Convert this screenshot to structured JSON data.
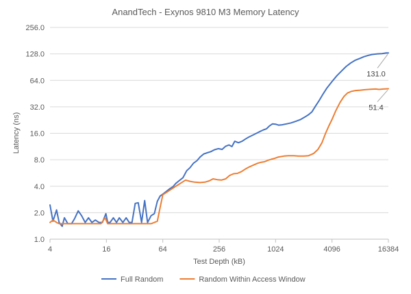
{
  "chart_data": {
    "type": "line",
    "title": "AnandTech - Exynos 9810 M3 Memory Latency",
    "xlabel": "Test Depth (kB)",
    "ylabel": "Latency (ns)",
    "x_scale": "log2",
    "y_scale": "log2",
    "xlim": [
      4,
      16384
    ],
    "ylim": [
      1,
      256
    ],
    "x_ticks": [
      4,
      16,
      64,
      256,
      1024,
      4096,
      16384
    ],
    "x_tick_labels": [
      "4",
      "16",
      "64",
      "256",
      "1024",
      "4096",
      "16384"
    ],
    "y_ticks": [
      1,
      2,
      4,
      8,
      16,
      32,
      64,
      128,
      256
    ],
    "y_tick_labels": [
      "1.0",
      "2.0",
      "4.0",
      "8.0",
      "16.0",
      "32.0",
      "64.0",
      "128.0",
      "256.0"
    ],
    "grid": "horizontal",
    "legend_position": "bottom",
    "series": [
      {
        "name": "Full Random",
        "color": "#4472C4",
        "points": [
          [
            4.0,
            2.45
          ],
          [
            4.3,
            1.6
          ],
          [
            4.7,
            2.15
          ],
          [
            5.0,
            1.55
          ],
          [
            5.4,
            1.4
          ],
          [
            5.7,
            1.75
          ],
          [
            6.2,
            1.5
          ],
          [
            6.8,
            1.5
          ],
          [
            7.3,
            1.7
          ],
          [
            8.0,
            2.1
          ],
          [
            8.7,
            1.85
          ],
          [
            9.5,
            1.55
          ],
          [
            10.3,
            1.75
          ],
          [
            11.2,
            1.55
          ],
          [
            12.2,
            1.65
          ],
          [
            13.3,
            1.55
          ],
          [
            14.5,
            1.55
          ],
          [
            15.8,
            1.95
          ],
          [
            16.5,
            1.55
          ],
          [
            17.5,
            1.55
          ],
          [
            19.0,
            1.75
          ],
          [
            20.5,
            1.55
          ],
          [
            22.0,
            1.75
          ],
          [
            24.0,
            1.55
          ],
          [
            26.0,
            1.75
          ],
          [
            28.0,
            1.55
          ],
          [
            30.0,
            1.55
          ],
          [
            32.5,
            2.55
          ],
          [
            35.0,
            2.6
          ],
          [
            38.0,
            1.55
          ],
          [
            41.0,
            2.75
          ],
          [
            44.0,
            1.55
          ],
          [
            48.0,
            1.85
          ],
          [
            52.0,
            1.95
          ],
          [
            56.0,
            2.7
          ],
          [
            60.0,
            3.1
          ],
          [
            64.0,
            3.25
          ],
          [
            70.0,
            3.5
          ],
          [
            76.0,
            3.75
          ],
          [
            82.0,
            3.95
          ],
          [
            88.0,
            4.3
          ],
          [
            95.0,
            4.6
          ],
          [
            105.0,
            5.0
          ],
          [
            115.0,
            6.0
          ],
          [
            125.0,
            6.5
          ],
          [
            136.0,
            7.3
          ],
          [
            148.0,
            7.8
          ],
          [
            160.0,
            8.6
          ],
          [
            175.0,
            9.3
          ],
          [
            190.0,
            9.6
          ],
          [
            208.0,
            9.9
          ],
          [
            228.0,
            10.4
          ],
          [
            250.0,
            10.7
          ],
          [
            275.0,
            10.5
          ],
          [
            300.0,
            11.4
          ],
          [
            325.0,
            11.8
          ],
          [
            350.0,
            11.3
          ],
          [
            375.0,
            13.0
          ],
          [
            410.0,
            12.5
          ],
          [
            450.0,
            13.0
          ],
          [
            490.0,
            13.8
          ],
          [
            530.0,
            14.5
          ],
          [
            580.0,
            15.2
          ],
          [
            640.0,
            16.0
          ],
          [
            700.0,
            16.8
          ],
          [
            760.0,
            17.5
          ],
          [
            820.0,
            18.0
          ],
          [
            880.0,
            19.4
          ],
          [
            950.0,
            20.5
          ],
          [
            1024.0,
            20.3
          ],
          [
            1100.0,
            19.8
          ],
          [
            1200.0,
            20.0
          ],
          [
            1350.0,
            20.5
          ],
          [
            1500.0,
            21.0
          ],
          [
            1700.0,
            22.0
          ],
          [
            1900.0,
            23.0
          ],
          [
            2100.0,
            24.5
          ],
          [
            2300.0,
            26.0
          ],
          [
            2500.0,
            28.0
          ],
          [
            2750.0,
            33.0
          ],
          [
            3000.0,
            38.0
          ],
          [
            3300.0,
            45.0
          ],
          [
            3600.0,
            52.0
          ],
          [
            4096.0,
            62.0
          ],
          [
            4600.0,
            72.0
          ],
          [
            5200.0,
            82.0
          ],
          [
            5800.0,
            92.0
          ],
          [
            6500.0,
            101.0
          ],
          [
            7200.0,
            108.0
          ],
          [
            8192.0,
            114.0
          ],
          [
            9000.0,
            119.0
          ],
          [
            10000.0,
            123.0
          ],
          [
            11000.0,
            126.0
          ],
          [
            12500.0,
            128.0
          ],
          [
            14000.0,
            129.0
          ],
          [
            15500.0,
            131.0
          ],
          [
            16384.0,
            131.0
          ]
        ]
      },
      {
        "name": "Random Within Access Window",
        "color": "#ED7D31",
        "points": [
          [
            4.0,
            1.55
          ],
          [
            4.3,
            1.65
          ],
          [
            4.7,
            1.55
          ],
          [
            5.0,
            1.5
          ],
          [
            5.7,
            1.5
          ],
          [
            6.5,
            1.5
          ],
          [
            8.0,
            1.5
          ],
          [
            10.0,
            1.5
          ],
          [
            12.0,
            1.5
          ],
          [
            14.0,
            1.5
          ],
          [
            15.5,
            1.75
          ],
          [
            16.5,
            1.5
          ],
          [
            20.0,
            1.5
          ],
          [
            25.0,
            1.5
          ],
          [
            30.0,
            1.5
          ],
          [
            40.0,
            1.5
          ],
          [
            48.0,
            1.5
          ],
          [
            52.0,
            1.55
          ],
          [
            56.0,
            1.6
          ],
          [
            60.0,
            2.3
          ],
          [
            64.0,
            3.2
          ],
          [
            70.0,
            3.4
          ],
          [
            76.0,
            3.6
          ],
          [
            82.0,
            3.8
          ],
          [
            88.0,
            4.0
          ],
          [
            95.0,
            4.2
          ],
          [
            105.0,
            4.5
          ],
          [
            112.0,
            4.7
          ],
          [
            125.0,
            4.55
          ],
          [
            140.0,
            4.45
          ],
          [
            160.0,
            4.4
          ],
          [
            180.0,
            4.45
          ],
          [
            200.0,
            4.6
          ],
          [
            220.0,
            4.85
          ],
          [
            245.0,
            4.75
          ],
          [
            270.0,
            4.7
          ],
          [
            300.0,
            4.85
          ],
          [
            330.0,
            5.3
          ],
          [
            365.0,
            5.55
          ],
          [
            400.0,
            5.6
          ],
          [
            440.0,
            5.85
          ],
          [
            490.0,
            6.3
          ],
          [
            540.0,
            6.65
          ],
          [
            600.0,
            7.0
          ],
          [
            660.0,
            7.3
          ],
          [
            720.0,
            7.5
          ],
          [
            780.0,
            7.6
          ],
          [
            850.0,
            7.9
          ],
          [
            920.0,
            8.1
          ],
          [
            1000.0,
            8.3
          ],
          [
            1100.0,
            8.6
          ],
          [
            1250.0,
            8.8
          ],
          [
            1400.0,
            8.9
          ],
          [
            1600.0,
            8.9
          ],
          [
            1800.0,
            8.8
          ],
          [
            2048.0,
            8.8
          ],
          [
            2300.0,
            8.9
          ],
          [
            2600.0,
            9.4
          ],
          [
            2900.0,
            10.5
          ],
          [
            3200.0,
            12.5
          ],
          [
            3500.0,
            16.0
          ],
          [
            3800.0,
            19.5
          ],
          [
            4096.0,
            23.0
          ],
          [
            4500.0,
            29.0
          ],
          [
            5000.0,
            36.0
          ],
          [
            5500.0,
            42.0
          ],
          [
            6000.0,
            46.0
          ],
          [
            6600.0,
            48.0
          ],
          [
            7300.0,
            49.0
          ],
          [
            8192.0,
            49.5
          ],
          [
            9000.0,
            50.0
          ],
          [
            10000.0,
            50.5
          ],
          [
            11000.0,
            50.8
          ],
          [
            12000.0,
            51.0
          ],
          [
            13000.0,
            50.5
          ],
          [
            14500.0,
            51.0
          ],
          [
            16384.0,
            51.4
          ]
        ]
      }
    ],
    "annotations": [
      {
        "text": "131.0",
        "series": "Full Random",
        "x": 16384,
        "y": 131.0
      },
      {
        "text": "51.4",
        "series": "Random Within Access Window",
        "x": 16384,
        "y": 51.4
      }
    ]
  }
}
